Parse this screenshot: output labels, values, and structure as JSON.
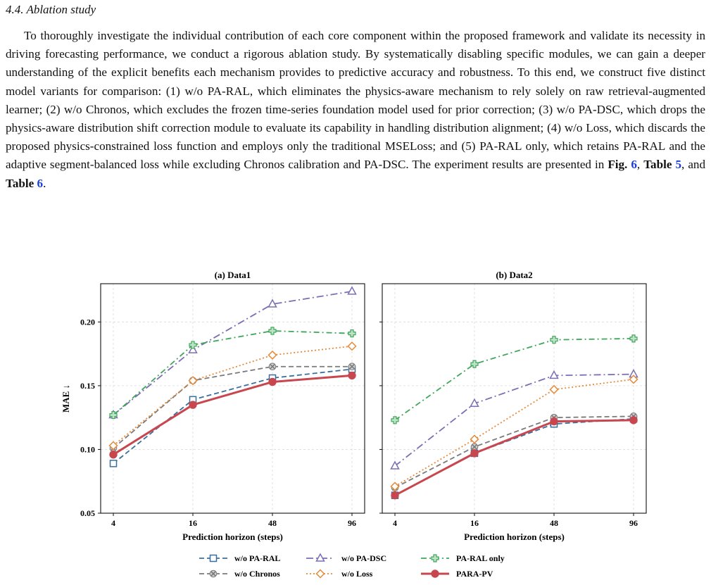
{
  "section_heading": "4.4. Ablation study",
  "paragraph": {
    "body": "To thoroughly investigate the individual contribution of each core component within the proposed framework and validate its necessity in driving forecasting performance, we conduct a rigorous ablation study. By systematically disabling specific modules, we can gain a deeper understanding of the explicit benefits each mechanism provides to predictive accuracy and robustness. To this end, we construct five distinct model variants for comparison: (1) w/o PA-RAL, which eliminates the physics-aware mechanism to rely solely on raw retrieval-augmented learner; (2) w/o Chronos, which excludes the frozen time-series foundation model used for prior correction; (3) w/o PA-DSC, which drops the physics-aware distribution shift correction module to evaluate its capability in handling distribution alignment; (4) w/o Loss, which discards the proposed physics-constrained loss function and employs only the traditional MSELoss; and (5) PA-RAL only, which retains PA-RAL and the adaptive segment-balanced loss while excluding Chronos calibration and PA-DSC. The experiment results are presented in ",
    "ref1_word": "Fig.",
    "ref1_num": "6",
    "sep1": ", ",
    "ref2_word": "Table",
    "ref2_num": "5",
    "sep2": ", and ",
    "ref3_word": "Table",
    "ref3_num": "6",
    "end": "."
  },
  "chart_data": {
    "type": "line",
    "ylabel": "MAE ↓",
    "xlabel": "Prediction horizon (steps)",
    "x": [
      "4",
      "16",
      "48",
      "96"
    ],
    "ylim": [
      0.05,
      0.23
    ],
    "yticks": [
      "0.05",
      "0.10",
      "0.15",
      "0.20"
    ],
    "grid": true,
    "legend_position": "bottom-center",
    "series_styles": [
      {
        "name": "w/o PA-RAL",
        "color": "#3a6e9c",
        "marker": "square",
        "dash": "7,4"
      },
      {
        "name": "w/o PA-DSC",
        "color": "#7b6fb5",
        "marker": "triangle",
        "dash": "10,4,2,4"
      },
      {
        "name": "PA-RAL only",
        "color": "#3fa65a",
        "marker": "plus",
        "dash": "8,4,2,4"
      },
      {
        "name": "w/o Chronos",
        "color": "#7a7a7a",
        "marker": "x",
        "dash": "7,4"
      },
      {
        "name": "w/o Loss",
        "color": "#e58a3a",
        "marker": "diamond",
        "dash": "2,3"
      },
      {
        "name": "PARA-PV",
        "color": "#c8474f",
        "marker": "circle",
        "dash": ""
      }
    ],
    "panels": [
      {
        "title": "(a) Data1",
        "series": [
          {
            "name": "w/o PA-RAL",
            "values": [
              0.089,
              0.139,
              0.156,
              0.163
            ]
          },
          {
            "name": "w/o PA-DSC",
            "values": [
              0.127,
              0.178,
              0.214,
              0.224
            ]
          },
          {
            "name": "PA-RAL only",
            "values": [
              0.127,
              0.182,
              0.193,
              0.191
            ]
          },
          {
            "name": "w/o Chronos",
            "values": [
              0.101,
              0.154,
              0.165,
              0.165
            ]
          },
          {
            "name": "w/o Loss",
            "values": [
              0.103,
              0.154,
              0.174,
              0.181
            ]
          },
          {
            "name": "PARA-PV",
            "values": [
              0.096,
              0.135,
              0.153,
              0.158
            ]
          }
        ]
      },
      {
        "title": "(b) Data2",
        "series": [
          {
            "name": "w/o PA-RAL",
            "values": [
              0.064,
              0.097,
              0.12,
              0.124
            ]
          },
          {
            "name": "w/o PA-DSC",
            "values": [
              0.087,
              0.136,
              0.158,
              0.159
            ]
          },
          {
            "name": "PA-RAL only",
            "values": [
              0.123,
              0.167,
              0.186,
              0.187
            ]
          },
          {
            "name": "w/o Chronos",
            "values": [
              0.07,
              0.102,
              0.125,
              0.126
            ]
          },
          {
            "name": "w/o Loss",
            "values": [
              0.071,
              0.108,
              0.147,
              0.155
            ]
          },
          {
            "name": "PARA-PV",
            "values": [
              0.064,
              0.097,
              0.122,
              0.123
            ]
          }
        ]
      }
    ]
  }
}
